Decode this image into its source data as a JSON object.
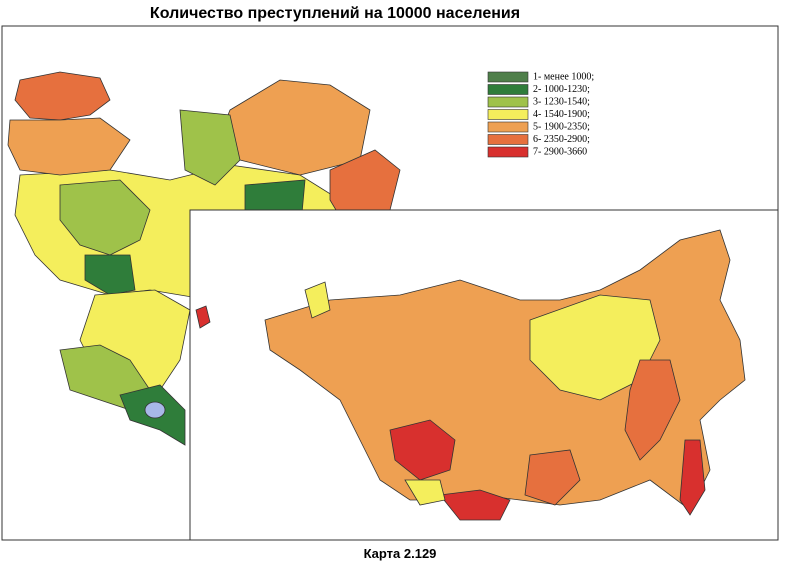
{
  "title": "Количество преступлений на 10000 населения",
  "legend": {
    "items": [
      {
        "label": "1- менее 1000;",
        "color": "#4f7f4a"
      },
      {
        "label": "2- 1000-1230;",
        "color": "#2f7d3a"
      },
      {
        "label": "3- 1230-1540;",
        "color": "#9fc24a"
      },
      {
        "label": "4- 1540-1900;",
        "color": "#f4ee5c"
      },
      {
        "label": "5- 1900-2350;",
        "color": "#eea052"
      },
      {
        "label": "6- 2350-2900;",
        "color": "#e6703e"
      },
      {
        "label": "7- 2900-3660",
        "color": "#d8302e"
      }
    ]
  },
  "caption": "Карта 2.129"
}
